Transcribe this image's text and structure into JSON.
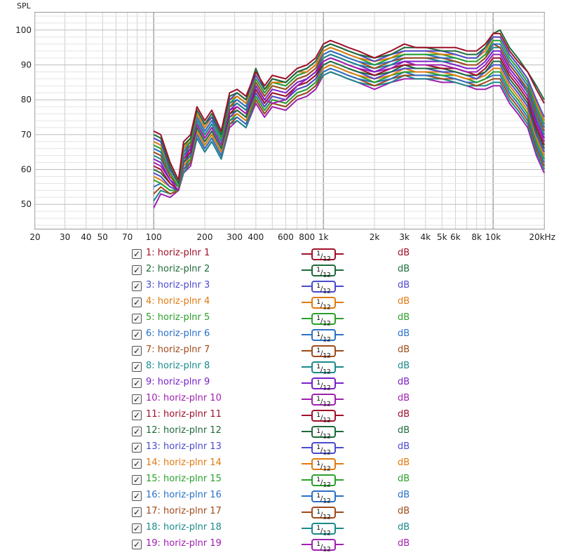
{
  "chart_data": {
    "type": "line",
    "ylabel": "SPL",
    "ylim": [
      43,
      105
    ],
    "xlim": [
      20,
      20000
    ],
    "x_scale": "log",
    "grid": true,
    "y_ticks": [
      50,
      60,
      70,
      80,
      90,
      100
    ],
    "x_tick_labels": [
      {
        "v": 20,
        "t": "20"
      },
      {
        "v": 30,
        "t": "30"
      },
      {
        "v": 40,
        "t": "40"
      },
      {
        "v": 50,
        "t": "50"
      },
      {
        "v": 70,
        "t": "70"
      },
      {
        "v": 100,
        "t": "100"
      },
      {
        "v": 200,
        "t": "200"
      },
      {
        "v": 300,
        "t": "300"
      },
      {
        "v": 400,
        "t": "400"
      },
      {
        "v": 600,
        "t": "600"
      },
      {
        "v": 800,
        "t": "800"
      },
      {
        "v": 1000,
        "t": "1k"
      },
      {
        "v": 2000,
        "t": "2k"
      },
      {
        "v": 3000,
        "t": "3k"
      },
      {
        "v": 4000,
        "t": "4k"
      },
      {
        "v": 5000,
        "t": "5k"
      },
      {
        "v": 6000,
        "t": "6k"
      },
      {
        "v": 8000,
        "t": "8k"
      },
      {
        "v": 10000,
        "t": "10k"
      },
      {
        "v": 20000,
        "t": "20kHz"
      }
    ],
    "freqs": [
      100,
      110,
      125,
      140,
      150,
      165,
      180,
      200,
      220,
      250,
      280,
      310,
      350,
      400,
      450,
      500,
      600,
      700,
      800,
      900,
      1000,
      1100,
      1250,
      1400,
      1600,
      2000,
      2500,
      3000,
      3500,
      4000,
      5000,
      6000,
      7000,
      8000,
      9000,
      10000,
      11000,
      12500,
      14000,
      16000,
      18000,
      20000
    ],
    "series": [
      {
        "name": "1: horiz-plnr 1",
        "color": "#a0102a",
        "values": [
          71,
          70,
          62,
          57,
          68,
          70,
          78,
          74,
          77,
          71,
          82,
          83,
          81,
          88,
          84,
          87,
          86,
          89,
          90,
          92,
          96,
          97,
          96,
          95,
          94,
          92,
          94,
          96,
          95,
          95,
          95,
          95,
          94,
          94,
          96,
          99,
          99,
          94,
          91,
          88,
          83,
          79
        ]
      },
      {
        "name": "2: horiz-plnr 2",
        "color": "#1e6b3a",
        "values": [
          70,
          69,
          61,
          56,
          67,
          69,
          77,
          73,
          76,
          70,
          81,
          82,
          80,
          89,
          83,
          86,
          85,
          88,
          89,
          91,
          95,
          96,
          95,
          94,
          93,
          92,
          93,
          95,
          95,
          95,
          94,
          94,
          93,
          93,
          95,
          99,
          100,
          95,
          92,
          88,
          84,
          80
        ]
      },
      {
        "name": "3: horiz-plnr 3",
        "color": "#4a4ad0",
        "values": [
          69,
          68,
          60,
          56,
          67,
          69,
          77,
          73,
          75,
          70,
          80,
          82,
          80,
          87,
          83,
          86,
          85,
          88,
          89,
          91,
          95,
          96,
          95,
          94,
          93,
          91,
          93,
          94,
          94,
          94,
          94,
          93,
          92,
          92,
          95,
          98,
          98,
          93,
          90,
          86,
          80,
          75
        ]
      },
      {
        "name": "4: horiz-plnr 4",
        "color": "#e07a10",
        "values": [
          68,
          67,
          60,
          56,
          66,
          69,
          76,
          72,
          75,
          70,
          80,
          81,
          79,
          87,
          83,
          85,
          85,
          88,
          88,
          90,
          94,
          95,
          94,
          93,
          92,
          91,
          92,
          94,
          94,
          94,
          93,
          93,
          92,
          92,
          94,
          98,
          98,
          93,
          90,
          86,
          79,
          74
        ]
      },
      {
        "name": "5: horiz-plnr 5",
        "color": "#2aa02a",
        "values": [
          67,
          66,
          59,
          55,
          66,
          68,
          76,
          72,
          75,
          69,
          79,
          81,
          79,
          86,
          82,
          85,
          84,
          87,
          88,
          90,
          94,
          95,
          94,
          93,
          92,
          90,
          92,
          93,
          93,
          93,
          93,
          92,
          91,
          91,
          93,
          97,
          97,
          92,
          89,
          85,
          78,
          73
        ]
      },
      {
        "name": "6: horiz-plnr 6",
        "color": "#2a70c8",
        "values": [
          66,
          65,
          59,
          55,
          65,
          68,
          75,
          71,
          74,
          69,
          79,
          80,
          78,
          86,
          82,
          85,
          84,
          87,
          88,
          90,
          93,
          94,
          93,
          92,
          91,
          90,
          91,
          93,
          93,
          93,
          92,
          92,
          91,
          91,
          93,
          96,
          96,
          91,
          88,
          84,
          77,
          72
        ]
      },
      {
        "name": "7: horiz-plnr 7",
        "color": "#a04a1a",
        "values": [
          65,
          64,
          58,
          55,
          65,
          67,
          75,
          71,
          74,
          69,
          78,
          80,
          78,
          85,
          81,
          84,
          83,
          86,
          87,
          89,
          93,
          94,
          93,
          92,
          91,
          89,
          91,
          92,
          92,
          92,
          92,
          91,
          90,
          90,
          92,
          96,
          95,
          90,
          87,
          83,
          76,
          71
        ]
      },
      {
        "name": "8: horiz-plnr 8",
        "color": "#1a8a8a",
        "values": [
          64,
          63,
          58,
          55,
          64,
          67,
          74,
          70,
          73,
          68,
          78,
          79,
          77,
          85,
          81,
          84,
          83,
          86,
          87,
          89,
          92,
          93,
          92,
          91,
          90,
          89,
          90,
          92,
          92,
          92,
          91,
          91,
          90,
          90,
          92,
          95,
          95,
          90,
          87,
          82,
          75,
          70
        ]
      },
      {
        "name": "9: horiz-plnr 9",
        "color": "#7a20c8",
        "values": [
          63,
          62,
          57,
          55,
          64,
          66,
          74,
          70,
          73,
          68,
          77,
          79,
          77,
          84,
          80,
          83,
          82,
          85,
          86,
          88,
          92,
          93,
          92,
          91,
          90,
          88,
          90,
          91,
          91,
          91,
          91,
          90,
          89,
          89,
          91,
          94,
          94,
          89,
          86,
          82,
          74,
          69
        ]
      },
      {
        "name": "10: horiz-plnr 10",
        "color": "#a020b0",
        "values": [
          62,
          61,
          57,
          54,
          63,
          66,
          73,
          69,
          72,
          67,
          77,
          78,
          76,
          84,
          80,
          79,
          80,
          84,
          86,
          88,
          91,
          92,
          91,
          90,
          89,
          88,
          89,
          91,
          90,
          90,
          90,
          89,
          88,
          88,
          90,
          93,
          93,
          88,
          85,
          81,
          73,
          68
        ]
      },
      {
        "name": "11: horiz-plnr 11",
        "color": "#a0102a",
        "values": [
          61,
          60,
          56,
          54,
          63,
          65,
          73,
          69,
          72,
          67,
          76,
          78,
          76,
          83,
          79,
          82,
          81,
          84,
          85,
          87,
          91,
          92,
          91,
          90,
          89,
          87,
          89,
          90,
          90,
          90,
          89,
          89,
          88,
          87,
          89,
          92,
          92,
          87,
          84,
          80,
          72,
          67
        ]
      },
      {
        "name": "12: horiz-plnr 12",
        "color": "#1e6b3a",
        "values": [
          60,
          59,
          56,
          54,
          62,
          65,
          72,
          68,
          71,
          66,
          76,
          77,
          75,
          83,
          79,
          82,
          81,
          84,
          85,
          87,
          90,
          91,
          90,
          89,
          88,
          87,
          88,
          90,
          89,
          89,
          89,
          88,
          87,
          87,
          88,
          91,
          91,
          86,
          83,
          79,
          71,
          66
        ]
      },
      {
        "name": "13: horiz-plnr 13",
        "color": "#4a4ad0",
        "values": [
          59,
          58,
          55,
          54,
          62,
          64,
          72,
          68,
          71,
          66,
          75,
          77,
          75,
          82,
          78,
          81,
          80,
          83,
          84,
          86,
          90,
          91,
          90,
          89,
          88,
          86,
          88,
          89,
          89,
          89,
          88,
          88,
          87,
          86,
          88,
          90,
          90,
          85,
          82,
          78,
          70,
          65
        ]
      },
      {
        "name": "14: horiz-plnr 14",
        "color": "#e07a10",
        "values": [
          58,
          57,
          55,
          54,
          61,
          64,
          71,
          67,
          70,
          65,
          75,
          76,
          74,
          82,
          78,
          81,
          80,
          83,
          84,
          86,
          89,
          90,
          89,
          88,
          87,
          86,
          87,
          89,
          88,
          88,
          88,
          87,
          86,
          86,
          87,
          89,
          89,
          84,
          81,
          77,
          69,
          64
        ]
      },
      {
        "name": "15: horiz-plnr 15",
        "color": "#2aa02a",
        "values": [
          57,
          56,
          54,
          54,
          61,
          63,
          71,
          67,
          70,
          65,
          74,
          76,
          74,
          81,
          77,
          80,
          79,
          82,
          83,
          85,
          89,
          90,
          89,
          88,
          87,
          85,
          87,
          88,
          88,
          88,
          87,
          87,
          86,
          85,
          86,
          88,
          88,
          83,
          80,
          76,
          68,
          63
        ]
      },
      {
        "name": "16: horiz-plnr 16",
        "color": "#2a70c8",
        "values": [
          55,
          56,
          54,
          54,
          60,
          63,
          70,
          66,
          69,
          64,
          74,
          75,
          73,
          81,
          77,
          80,
          79,
          82,
          83,
          85,
          88,
          89,
          88,
          87,
          86,
          85,
          86,
          88,
          87,
          87,
          87,
          86,
          85,
          85,
          86,
          87,
          87,
          82,
          79,
          75,
          67,
          62
        ]
      },
      {
        "name": "17: horiz-plnr 17",
        "color": "#a04a1a",
        "values": [
          53,
          55,
          53,
          54,
          60,
          62,
          70,
          66,
          69,
          64,
          73,
          75,
          73,
          80,
          76,
          79,
          78,
          81,
          82,
          84,
          88,
          89,
          88,
          87,
          86,
          84,
          86,
          87,
          87,
          87,
          86,
          86,
          85,
          84,
          85,
          86,
          86,
          81,
          78,
          74,
          66,
          61
        ]
      },
      {
        "name": "18: horiz-plnr 18",
        "color": "#1a8a8a",
        "values": [
          51,
          54,
          53,
          54,
          59,
          62,
          69,
          65,
          68,
          63,
          73,
          74,
          72,
          80,
          76,
          79,
          78,
          81,
          82,
          84,
          87,
          88,
          87,
          86,
          85,
          84,
          85,
          87,
          86,
          86,
          86,
          85,
          84,
          84,
          84,
          85,
          85,
          80,
          77,
          73,
          65,
          60
        ]
      },
      {
        "name": "19: horiz-plnr 19",
        "color": "#a020b0",
        "values": [
          49,
          53,
          52,
          54,
          59,
          61,
          69,
          65,
          68,
          63,
          72,
          74,
          72,
          79,
          75,
          78,
          77,
          80,
          81,
          83,
          87,
          88,
          87,
          86,
          85,
          83,
          85,
          86,
          86,
          86,
          85,
          85,
          84,
          83,
          83,
          84,
          84,
          79,
          76,
          72,
          64,
          59
        ]
      }
    ]
  },
  "legend": {
    "smoothing_numerator": "1",
    "smoothing_denominator": "12",
    "unit": "dB",
    "checkmark": "✓"
  }
}
